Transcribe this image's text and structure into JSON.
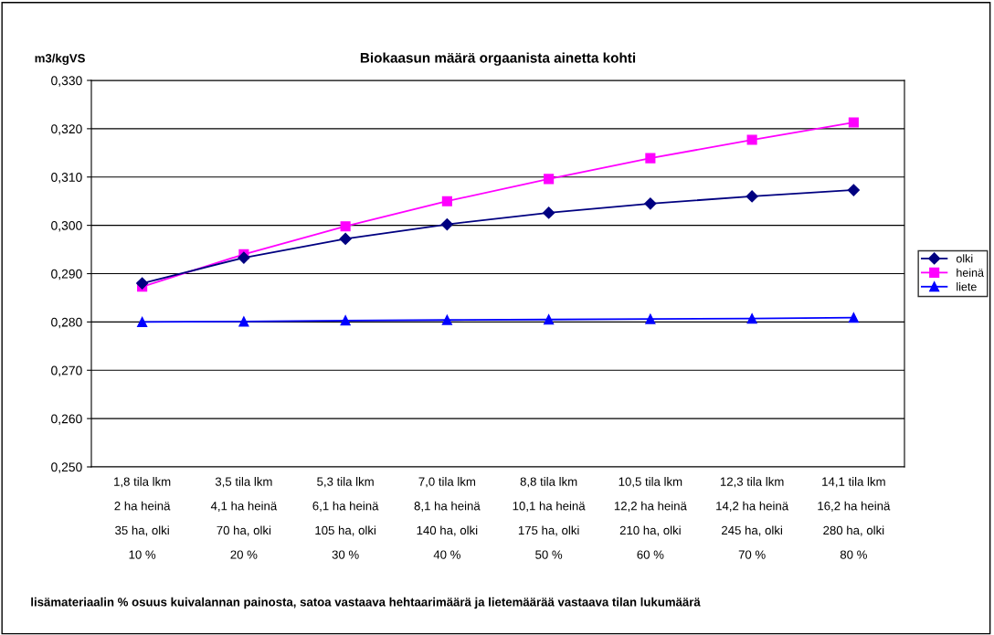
{
  "chart_data": {
    "type": "line",
    "title": "Biokaasun määrä orgaanista ainetta kohti",
    "ylabel": "m3/kgVS",
    "xlabel": "lisämateriaalin % osuus kuivalannan painosta, satoa vastaava hehtaarimäärä ja lietemäärää vastaava tilan lukumäärä",
    "categories": [
      "1,8 tila lkm\n2 ha heinä\n35 ha, olki\n10 %",
      "3,5 tila lkm\n4,1 ha heinä\n70 ha, olki\n20 %",
      "5,3 tila lkm\n6,1 ha heinä\n105 ha, olki\n30 %",
      "7,0 tila lkm\n8,1 ha heinä\n140 ha, olki\n40 %",
      "8,8 tila lkm\n10,1 ha heinä\n175 ha, olki\n50 %",
      "10,5 tila lkm\n12,2 ha heinä\n210 ha, olki\n60 %",
      "12,3 tila lkm\n14,2 ha heinä\n245 ha, olki\n70 %",
      "14,1 tila lkm\n16,2 ha heinä\n280 ha, olki\n80 %"
    ],
    "series": [
      {
        "name": "olki",
        "color": "#000080",
        "marker": "diamond",
        "values": [
          0.288,
          0.2933,
          0.2972,
          0.3002,
          0.3026,
          0.3045,
          0.306,
          0.3073
        ]
      },
      {
        "name": "heinä",
        "color": "#ff00ff",
        "marker": "square",
        "values": [
          0.2873,
          0.294,
          0.2998,
          0.305,
          0.3096,
          0.3139,
          0.3177,
          0.3213
        ]
      },
      {
        "name": "liete",
        "color": "#0000ff",
        "marker": "triangle",
        "values": [
          0.28,
          0.2801,
          0.2803,
          0.2804,
          0.2805,
          0.2806,
          0.2807,
          0.2809
        ]
      }
    ],
    "ylim": [
      0.25,
      0.33
    ],
    "yticks": [
      {
        "value": 0.25,
        "label": "0,250"
      },
      {
        "value": 0.26,
        "label": "0,260"
      },
      {
        "value": 0.27,
        "label": "0,270"
      },
      {
        "value": 0.28,
        "label": "0,280"
      },
      {
        "value": 0.29,
        "label": "0,290"
      },
      {
        "value": 0.3,
        "label": "0,300"
      },
      {
        "value": 0.31,
        "label": "0,310"
      },
      {
        "value": 0.32,
        "label": "0,320"
      },
      {
        "value": 0.33,
        "label": "0,330"
      }
    ],
    "grid": "y",
    "legend": "right",
    "line_style": "solid"
  }
}
